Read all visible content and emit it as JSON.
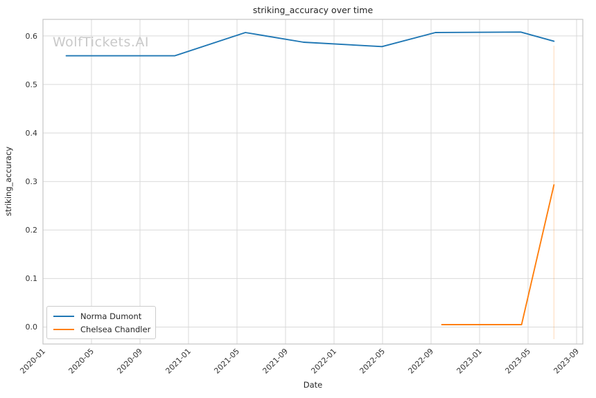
{
  "watermark": {
    "text": "WolfTickets.AI",
    "color": "#c9c9c9"
  },
  "chart_data": {
    "type": "line",
    "title": "striking_accuracy over time",
    "xlabel": "Date",
    "ylabel": "striking_accuracy",
    "grid": true,
    "legend_position": "lower left",
    "x_ticks": [
      "2020-01",
      "2020-05",
      "2020-09",
      "2021-01",
      "2021-05",
      "2021-09",
      "2022-01",
      "2022-05",
      "2022-09",
      "2023-01",
      "2023-05",
      "2023-09"
    ],
    "y_ticks": [
      "0.0",
      "0.1",
      "0.2",
      "0.3",
      "0.4",
      "0.5",
      "0.6"
    ],
    "xlim": [
      "2020-01",
      "2023-09"
    ],
    "ylim": [
      -0.03,
      0.63
    ],
    "series": [
      {
        "name": "Norma Dumont",
        "color": "#1f77b4",
        "points": [
          {
            "date": "2020-02-29",
            "value": 0.559
          },
          {
            "date": "2020-11-27",
            "value": 0.559
          },
          {
            "date": "2021-05-22",
            "value": 0.607
          },
          {
            "date": "2021-10-16",
            "value": 0.587
          },
          {
            "date": "2022-04-30",
            "value": 0.578
          },
          {
            "date": "2022-09-12",
            "value": 0.607
          },
          {
            "date": "2023-04-13",
            "value": 0.608
          },
          {
            "date": "2023-07-05",
            "value": 0.589
          }
        ]
      },
      {
        "name": "Chelsea Chandler",
        "color": "#ff7f0e",
        "points": [
          {
            "date": "2022-09-28",
            "value": 0.005
          },
          {
            "date": "2023-04-15",
            "value": 0.005
          },
          {
            "date": "2023-07-05",
            "value": 0.293
          }
        ]
      }
    ],
    "annotations": [
      {
        "type": "vline",
        "date": "2023-07-05",
        "color": "#ff7f0e",
        "opacity": 0.25
      }
    ]
  }
}
